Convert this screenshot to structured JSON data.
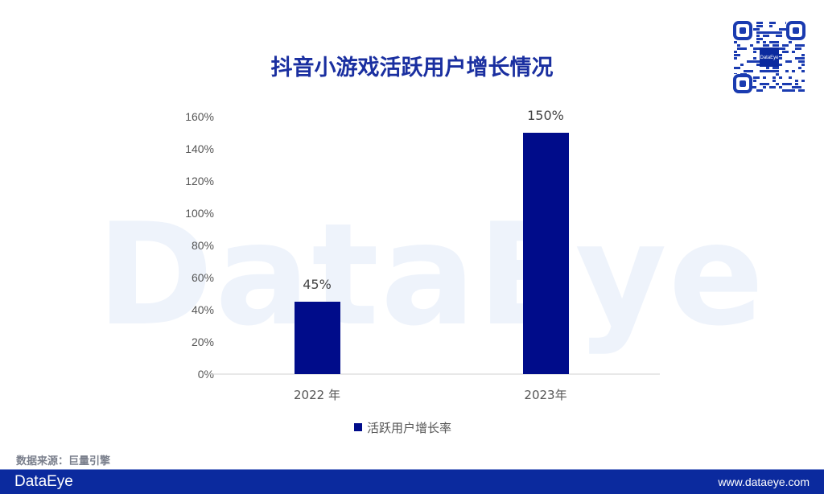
{
  "title": "抖音小游戏活跃用户增长情况",
  "watermark": "DataEye",
  "source": "数据来源：巨量引擎",
  "footer": {
    "brand": "DataEye",
    "website": "www.dataeye.com",
    "color": "#0b2a9e"
  },
  "qr_logo": "DataEye",
  "chart_data": {
    "type": "bar",
    "title": "抖音小游戏活跃用户增长情况",
    "categories": [
      "2022 年",
      "2023年"
    ],
    "series": [
      {
        "name": "活跃用户增长率",
        "values": [
          45,
          150
        ],
        "labels": [
          "45%",
          "150%"
        ],
        "color": "#000c8a"
      }
    ],
    "ylim": [
      0,
      160
    ],
    "yticks": [
      "0%",
      "20%",
      "40%",
      "60%",
      "80%",
      "100%",
      "120%",
      "140%",
      "160%"
    ],
    "grid": false,
    "legend": "bottom"
  }
}
